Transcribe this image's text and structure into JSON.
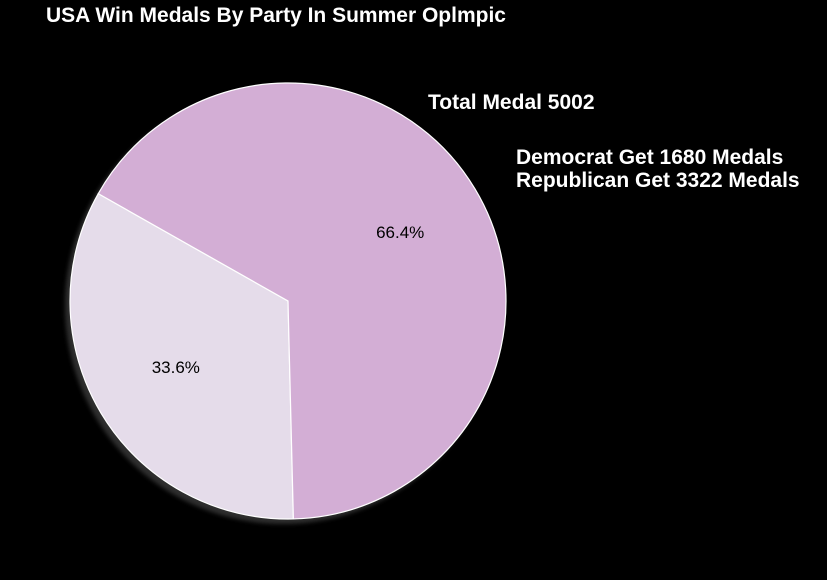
{
  "chart_data": {
    "type": "pie",
    "title": "USA Win Medals By Party In Summer Oplmpic",
    "categories": [
      "Democrat",
      "Republican"
    ],
    "values": [
      1680,
      3322
    ],
    "percent_labels": [
      "33.6%",
      "66.4%"
    ],
    "colors": [
      "#e5dcea",
      "#d3aed5"
    ],
    "shadow": true,
    "annotations": {
      "total": "Total Medal 5002",
      "democrat": "Democrat Get 1680 Medals",
      "republican": " Republican Get 3322 Medals"
    }
  }
}
